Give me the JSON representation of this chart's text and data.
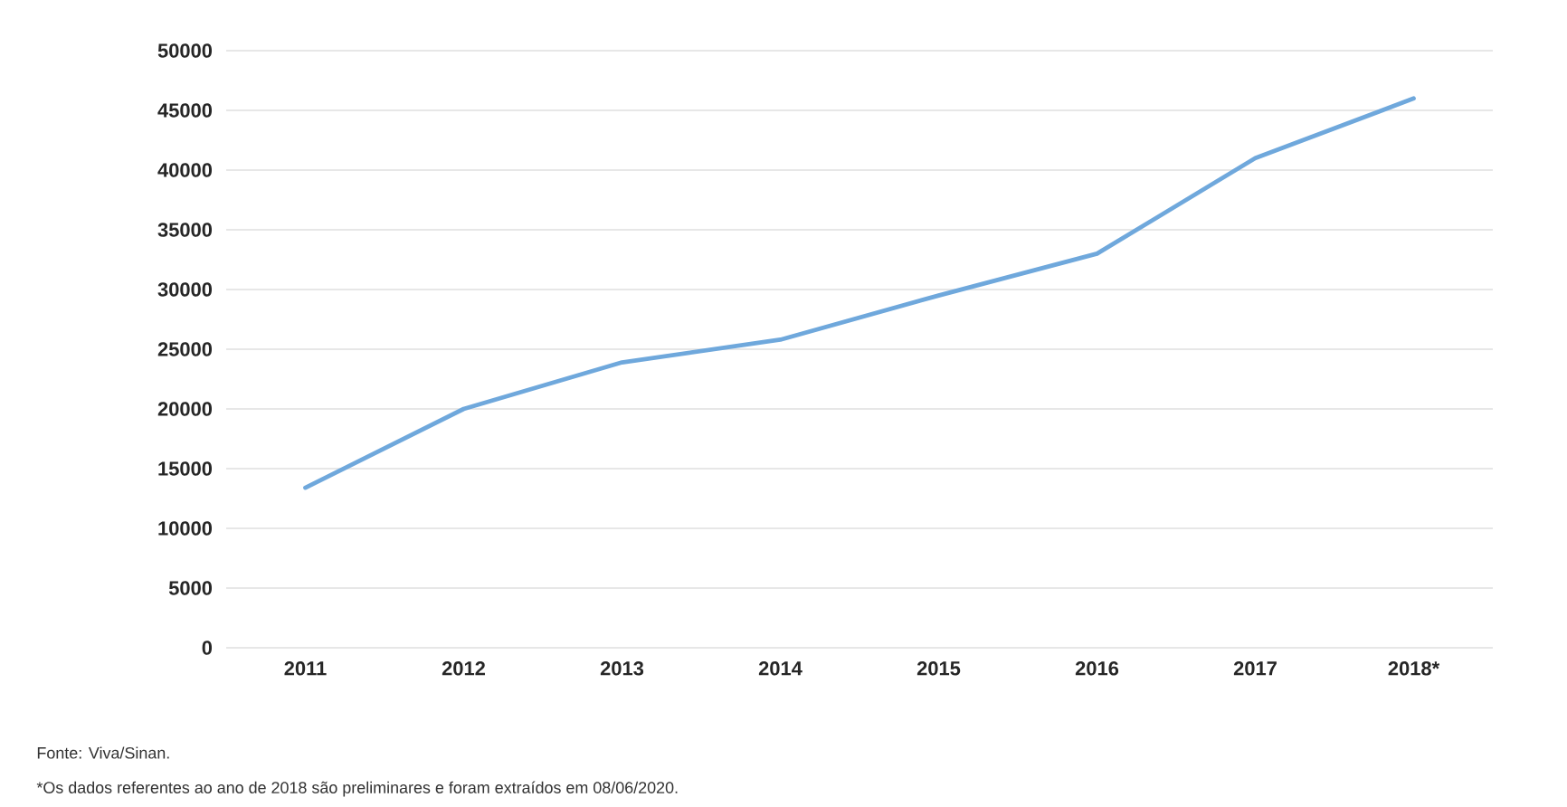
{
  "chart_data": {
    "type": "line",
    "categories": [
      "2011",
      "2012",
      "2013",
      "2014",
      "2015",
      "2016",
      "2017",
      "2018*"
    ],
    "series": [
      {
        "color": "#6fa8dc",
        "values": [
          13400,
          20000,
          23900,
          25800,
          29500,
          33000,
          41000,
          46000
        ]
      }
    ],
    "ylim": [
      0,
      50000
    ],
    "yticks": [
      0,
      5000,
      10000,
      15000,
      20000,
      25000,
      30000,
      35000,
      40000,
      45000,
      50000
    ],
    "grid": "y",
    "legend": false,
    "marker": "none",
    "line_style": "solid",
    "annotations": [
      "Fonte: Viva/Sinan.",
      "*Os dados referentes ao ano de 2018 são preliminares e foram extraídos em 08/06/2020."
    ]
  }
}
